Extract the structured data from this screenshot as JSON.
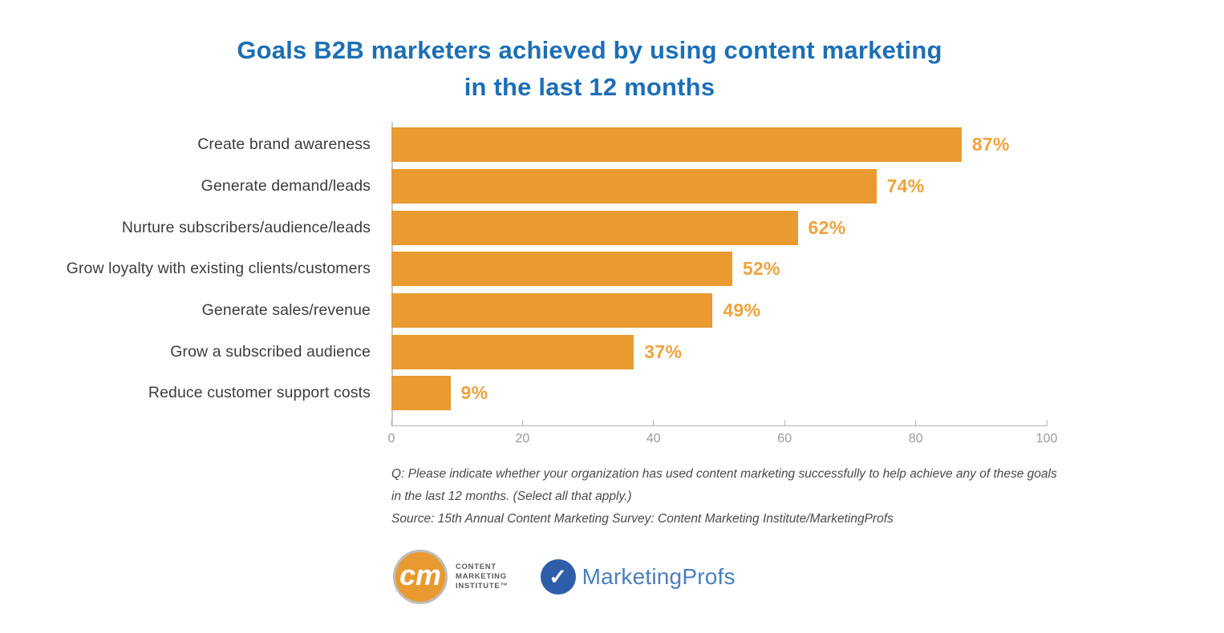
{
  "title": {
    "line1": "Goals B2B marketers achieved by using content marketing",
    "line2": "in the last 12 months",
    "color": "#1d6fb5"
  },
  "chart_data": {
    "type": "bar",
    "orientation": "horizontal",
    "title": "Goals B2B marketers achieved by using content marketing in the last 12 months",
    "categories": [
      "Create brand awareness",
      "Generate demand/leads",
      "Nurture subscribers/audience/leads",
      "Grow loyalty with existing clients/customers",
      "Generate sales/revenue",
      "Grow a subscribed audience",
      "Reduce customer support costs"
    ],
    "values": [
      87,
      74,
      62,
      52,
      49,
      37,
      9
    ],
    "value_labels": [
      "87%",
      "74%",
      "62%",
      "52%",
      "49%",
      "37%",
      "9%"
    ],
    "xlim": [
      0,
      100
    ],
    "x_ticks": [
      0,
      20,
      40,
      60,
      80,
      100
    ],
    "grid": false,
    "legend": null,
    "bar_color": "#e99a30",
    "value_label_color": "#f0a23c"
  },
  "footnotes": {
    "question_lines": [
      "Q: Please indicate whether your organization has used content marketing successfully to help achieve any of these goals",
      "in the last 12 months. (Select all that apply.)"
    ],
    "source": "Source: 15th Annual Content Marketing Survey: Content Marketing Institute/MarketingProfs"
  },
  "logos": {
    "cmi": {
      "monogram": "cm",
      "text_lines": [
        "CONTENT",
        "MARKETING",
        "INSTITUTE™"
      ],
      "circle_color": "#e89a30"
    },
    "marketingprofs": {
      "check": "✓",
      "text": "MarketingProfs",
      "text_color": "#4b7ec1",
      "circle_color": "#2e5ea9"
    }
  }
}
